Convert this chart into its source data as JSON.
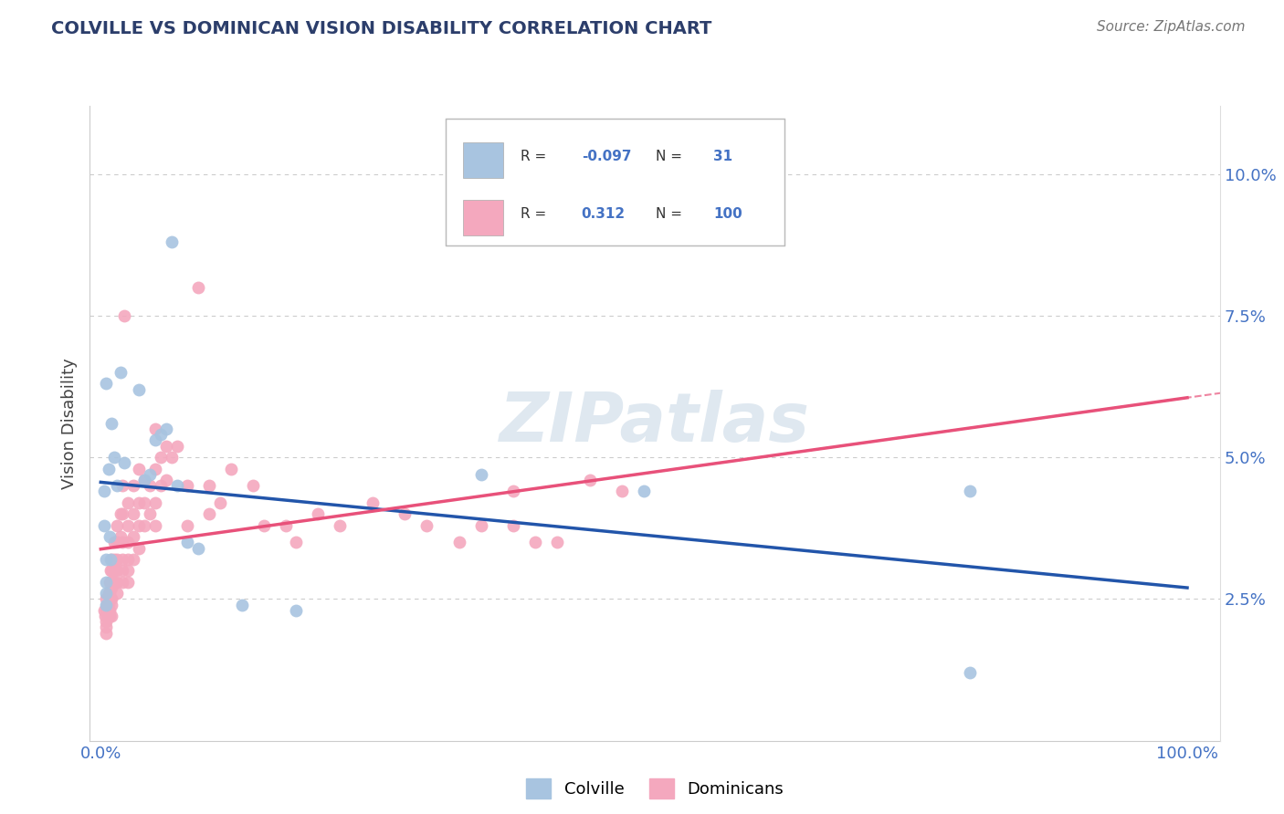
{
  "title": "COLVILLE VS DOMINICAN VISION DISABILITY CORRELATION CHART",
  "source": "Source: ZipAtlas.com",
  "ylabel": "Vision Disability",
  "colville_color": "#a8c4e0",
  "dominican_color": "#f4a8be",
  "colville_line_color": "#2255aa",
  "dominican_line_color": "#e8517a",
  "r_colville": -0.097,
  "n_colville": 31,
  "r_dominican": 0.312,
  "n_dominican": 100,
  "watermark": "ZIPatlas",
  "colville_points": [
    [
      0.3,
      4.4
    ],
    [
      0.3,
      3.8
    ],
    [
      0.5,
      3.2
    ],
    [
      0.5,
      2.8
    ],
    [
      0.5,
      2.6
    ],
    [
      0.5,
      2.4
    ],
    [
      0.7,
      4.8
    ],
    [
      0.8,
      3.6
    ],
    [
      0.9,
      3.2
    ],
    [
      1.0,
      5.6
    ],
    [
      1.5,
      4.5
    ],
    [
      1.8,
      6.5
    ],
    [
      2.2,
      4.9
    ],
    [
      3.5,
      6.2
    ],
    [
      4.5,
      4.7
    ],
    [
      5.0,
      5.3
    ],
    [
      5.5,
      5.4
    ],
    [
      6.0,
      5.5
    ],
    [
      6.5,
      8.8
    ],
    [
      7.0,
      4.5
    ],
    [
      8.0,
      3.5
    ],
    [
      9.0,
      3.4
    ],
    [
      13.0,
      2.4
    ],
    [
      18.0,
      2.3
    ],
    [
      50.0,
      4.4
    ],
    [
      80.0,
      4.4
    ],
    [
      80.0,
      1.2
    ],
    [
      35.0,
      4.7
    ],
    [
      1.2,
      5.0
    ],
    [
      4.0,
      4.6
    ],
    [
      0.5,
      6.3
    ]
  ],
  "dominican_points": [
    [
      0.3,
      2.3
    ],
    [
      0.4,
      2.2
    ],
    [
      0.5,
      2.5
    ],
    [
      0.5,
      2.3
    ],
    [
      0.5,
      2.1
    ],
    [
      0.5,
      2.0
    ],
    [
      0.5,
      1.9
    ],
    [
      0.6,
      2.4
    ],
    [
      0.6,
      2.2
    ],
    [
      0.7,
      2.6
    ],
    [
      0.7,
      2.4
    ],
    [
      0.7,
      2.3
    ],
    [
      0.7,
      2.2
    ],
    [
      0.8,
      2.8
    ],
    [
      0.8,
      2.6
    ],
    [
      0.8,
      2.5
    ],
    [
      0.8,
      2.3
    ],
    [
      0.8,
      2.2
    ],
    [
      0.9,
      3.0
    ],
    [
      0.9,
      2.8
    ],
    [
      0.9,
      2.5
    ],
    [
      1.0,
      3.2
    ],
    [
      1.0,
      3.0
    ],
    [
      1.0,
      2.8
    ],
    [
      1.0,
      2.7
    ],
    [
      1.0,
      2.5
    ],
    [
      1.0,
      2.4
    ],
    [
      1.0,
      2.2
    ],
    [
      1.2,
      3.5
    ],
    [
      1.2,
      3.2
    ],
    [
      1.2,
      3.0
    ],
    [
      1.2,
      2.8
    ],
    [
      1.5,
      3.8
    ],
    [
      1.5,
      3.5
    ],
    [
      1.5,
      3.2
    ],
    [
      1.5,
      3.0
    ],
    [
      1.5,
      2.8
    ],
    [
      1.5,
      2.6
    ],
    [
      1.8,
      4.0
    ],
    [
      1.8,
      3.6
    ],
    [
      2.0,
      4.5
    ],
    [
      2.0,
      4.0
    ],
    [
      2.0,
      3.5
    ],
    [
      2.0,
      3.2
    ],
    [
      2.0,
      3.0
    ],
    [
      2.0,
      2.8
    ],
    [
      2.5,
      4.2
    ],
    [
      2.5,
      3.8
    ],
    [
      2.5,
      3.5
    ],
    [
      2.5,
      3.2
    ],
    [
      2.5,
      3.0
    ],
    [
      2.5,
      2.8
    ],
    [
      3.0,
      4.5
    ],
    [
      3.0,
      4.0
    ],
    [
      3.0,
      3.6
    ],
    [
      3.0,
      3.2
    ],
    [
      3.5,
      4.8
    ],
    [
      3.5,
      4.2
    ],
    [
      3.5,
      3.8
    ],
    [
      3.5,
      3.4
    ],
    [
      4.0,
      4.6
    ],
    [
      4.0,
      4.2
    ],
    [
      4.0,
      3.8
    ],
    [
      4.5,
      4.5
    ],
    [
      4.5,
      4.0
    ],
    [
      5.0,
      5.5
    ],
    [
      5.0,
      4.8
    ],
    [
      5.0,
      4.2
    ],
    [
      5.0,
      3.8
    ],
    [
      5.5,
      5.0
    ],
    [
      5.5,
      4.5
    ],
    [
      6.0,
      5.2
    ],
    [
      6.0,
      4.6
    ],
    [
      6.5,
      5.0
    ],
    [
      7.0,
      5.2
    ],
    [
      8.0,
      4.5
    ],
    [
      8.0,
      3.8
    ],
    [
      9.0,
      8.0
    ],
    [
      10.0,
      4.5
    ],
    [
      10.0,
      4.0
    ],
    [
      11.0,
      4.2
    ],
    [
      12.0,
      4.8
    ],
    [
      14.0,
      4.5
    ],
    [
      15.0,
      3.8
    ],
    [
      17.0,
      3.8
    ],
    [
      18.0,
      3.5
    ],
    [
      20.0,
      4.0
    ],
    [
      22.0,
      3.8
    ],
    [
      25.0,
      4.2
    ],
    [
      28.0,
      4.0
    ],
    [
      30.0,
      3.8
    ],
    [
      33.0,
      3.5
    ],
    [
      35.0,
      3.8
    ],
    [
      38.0,
      3.8
    ],
    [
      40.0,
      3.5
    ],
    [
      42.0,
      3.5
    ],
    [
      45.0,
      4.6
    ],
    [
      48.0,
      4.4
    ],
    [
      2.2,
      7.5
    ],
    [
      38.0,
      4.4
    ]
  ]
}
